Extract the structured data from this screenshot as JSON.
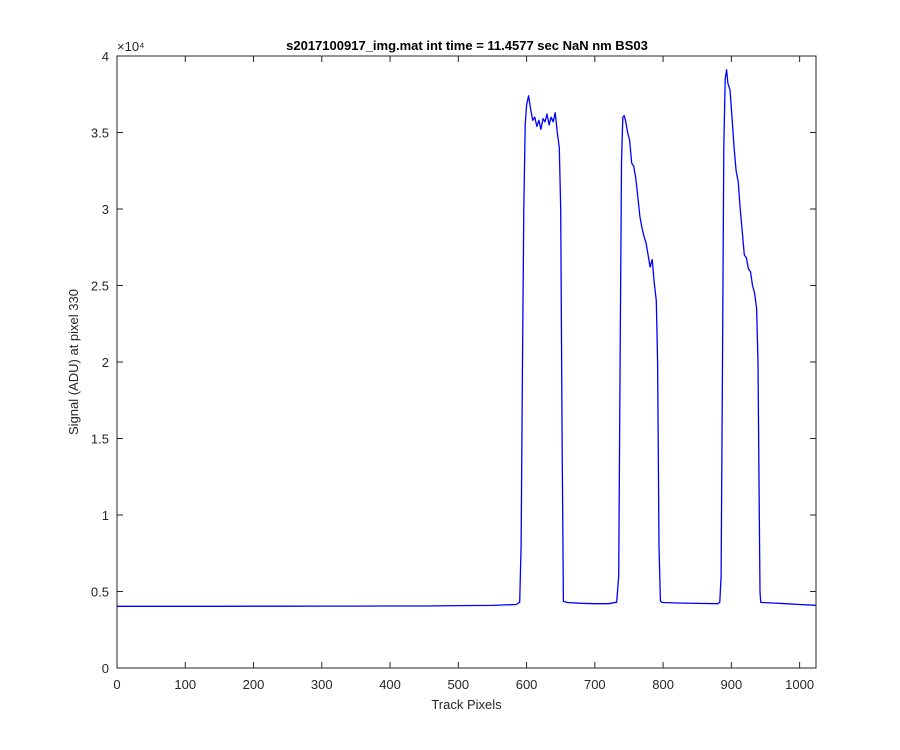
{
  "chart_data": {
    "type": "line",
    "title": "s2017100917_img.mat int time = 11.4577 sec  NaN nm BS03",
    "xlabel": "Track Pixels",
    "ylabel": "Signal (ADU) at pixel 330",
    "y_exponent_label": "×10⁴",
    "xlim": [
      0,
      1024
    ],
    "ylim": [
      0,
      40000
    ],
    "xticks": [
      0,
      100,
      200,
      300,
      400,
      500,
      600,
      700,
      800,
      900,
      1000
    ],
    "xtick_labels": [
      "0",
      "100",
      "200",
      "300",
      "400",
      "500",
      "600",
      "700",
      "800",
      "900",
      "1000"
    ],
    "yticks": [
      0,
      5000,
      10000,
      15000,
      20000,
      25000,
      30000,
      35000,
      40000
    ],
    "ytick_labels": [
      "0",
      "0.5",
      "1",
      "1.5",
      "2",
      "2.5",
      "3",
      "3.5",
      "4"
    ],
    "grid": false,
    "series_color": "#0000ff",
    "series": [
      {
        "x": [
          0,
          50,
          100,
          150,
          200,
          250,
          300,
          350,
          400,
          450,
          500,
          550,
          585,
          590,
          592,
          594,
          596,
          598,
          600,
          603,
          606,
          609,
          612,
          615,
          618,
          621,
          624,
          627,
          630,
          633,
          636,
          639,
          642,
          645,
          648,
          650,
          652,
          654,
          660,
          680,
          700,
          720,
          732,
          735,
          737,
          739,
          741,
          743,
          745,
          748,
          751,
          754,
          757,
          760,
          763,
          766,
          769,
          772,
          775,
          778,
          781,
          784,
          787,
          790,
          792,
          794,
          796,
          798,
          800,
          820,
          850,
          880,
          883,
          885,
          887,
          889,
          891,
          893,
          895,
          898,
          901,
          904,
          907,
          910,
          913,
          916,
          919,
          922,
          925,
          928,
          931,
          934,
          937,
          939,
          941,
          942,
          943,
          945,
          960,
          980,
          1000,
          1024
        ],
        "y": [
          4030,
          4030,
          4035,
          4035,
          4040,
          4040,
          4045,
          4045,
          4050,
          4055,
          4080,
          4090,
          4150,
          4300,
          8000,
          20000,
          30000,
          35500,
          36800,
          37400,
          36500,
          35800,
          36000,
          35400,
          35800,
          35200,
          35900,
          35700,
          36200,
          35500,
          36000,
          35700,
          36300,
          35000,
          34000,
          30000,
          15000,
          4350,
          4280,
          4230,
          4200,
          4200,
          4300,
          6000,
          20000,
          33000,
          36000,
          36100,
          35800,
          35000,
          34500,
          33000,
          32800,
          32000,
          30800,
          29500,
          28800,
          28200,
          27800,
          27000,
          26200,
          26700,
          25200,
          24000,
          20000,
          8000,
          4400,
          4300,
          4280,
          4250,
          4220,
          4200,
          4300,
          6000,
          20000,
          34000,
          38500,
          39100,
          38200,
          37800,
          36000,
          34000,
          32500,
          31800,
          30000,
          28500,
          27000,
          26800,
          26100,
          25900,
          25000,
          24500,
          23500,
          20000,
          10000,
          5000,
          4300,
          4280,
          4250,
          4200,
          4150,
          4100
        ]
      }
    ]
  }
}
